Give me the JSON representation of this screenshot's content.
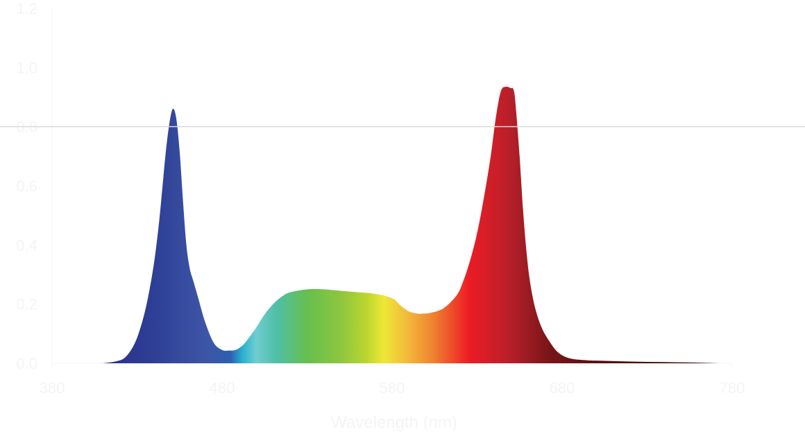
{
  "chart_data": {
    "type": "area",
    "title": "",
    "xlabel": "Wavelength (nm)",
    "ylabel": "",
    "xlim": [
      380,
      780
    ],
    "ylim": [
      0,
      1.2
    ],
    "x_ticks": [
      380,
      480,
      580,
      680,
      780
    ],
    "y_ticks": [
      0.0,
      0.2,
      0.4,
      0.6,
      0.8,
      1.0,
      1.2
    ],
    "reference_line": 0.8,
    "grid": false,
    "legend": "none",
    "fill": "visible-spectrum gradient",
    "series": [
      {
        "x": [
          410,
          418,
          423,
          428,
          432,
          436,
          440,
          443,
          445,
          447,
          449,
          451,
          453,
          455,
          457,
          459,
          461,
          463,
          466,
          470,
          475,
          480,
          484,
          488,
          492,
          495,
          500,
          505,
          510,
          515,
          520,
          530,
          540,
          550,
          560,
          570,
          580,
          585,
          590,
          595,
          598,
          602,
          610,
          618,
          622,
          626,
          630,
          634,
          638,
          641,
          644,
          647,
          650,
          651,
          652,
          653,
          655,
          657,
          659,
          661,
          664,
          668,
          673,
          678,
          685,
          695,
          700,
          720,
          740,
          760,
          772
        ],
        "y": [
          0.0,
          0.007,
          0.02,
          0.06,
          0.12,
          0.21,
          0.34,
          0.48,
          0.6,
          0.72,
          0.81,
          0.86,
          0.83,
          0.72,
          0.55,
          0.4,
          0.32,
          0.28,
          0.22,
          0.14,
          0.07,
          0.045,
          0.043,
          0.045,
          0.06,
          0.08,
          0.12,
          0.165,
          0.2,
          0.225,
          0.24,
          0.25,
          0.25,
          0.245,
          0.24,
          0.235,
          0.22,
          0.195,
          0.175,
          0.168,
          0.168,
          0.17,
          0.185,
          0.23,
          0.28,
          0.35,
          0.44,
          0.56,
          0.7,
          0.83,
          0.92,
          0.935,
          0.93,
          0.93,
          0.91,
          0.85,
          0.7,
          0.52,
          0.38,
          0.28,
          0.19,
          0.12,
          0.07,
          0.035,
          0.016,
          0.01,
          0.009,
          0.006,
          0.004,
          0.002,
          0.0
        ]
      }
    ]
  },
  "gradient_stops": [
    {
      "nm": 410,
      "color": "#2a2f8c"
    },
    {
      "nm": 440,
      "color": "#2e3f95"
    },
    {
      "nm": 470,
      "color": "#3d55a6"
    },
    {
      "nm": 485,
      "color": "#2f5fb0"
    },
    {
      "nm": 492,
      "color": "#29b1d0"
    },
    {
      "nm": 500,
      "color": "#6fcdd0"
    },
    {
      "nm": 512,
      "color": "#4fbfa8"
    },
    {
      "nm": 530,
      "color": "#67bf4e"
    },
    {
      "nm": 550,
      "color": "#8dc63f"
    },
    {
      "nm": 565,
      "color": "#bcd630"
    },
    {
      "nm": 575,
      "color": "#ede836"
    },
    {
      "nm": 590,
      "color": "#f2b63a"
    },
    {
      "nm": 605,
      "color": "#ef7f2f"
    },
    {
      "nm": 625,
      "color": "#ed1c24"
    },
    {
      "nm": 650,
      "color": "#b5202a"
    },
    {
      "nm": 672,
      "color": "#7a1518"
    },
    {
      "nm": 700,
      "color": "#5a0f12"
    },
    {
      "nm": 772,
      "color": "#2b0a0b"
    }
  ]
}
